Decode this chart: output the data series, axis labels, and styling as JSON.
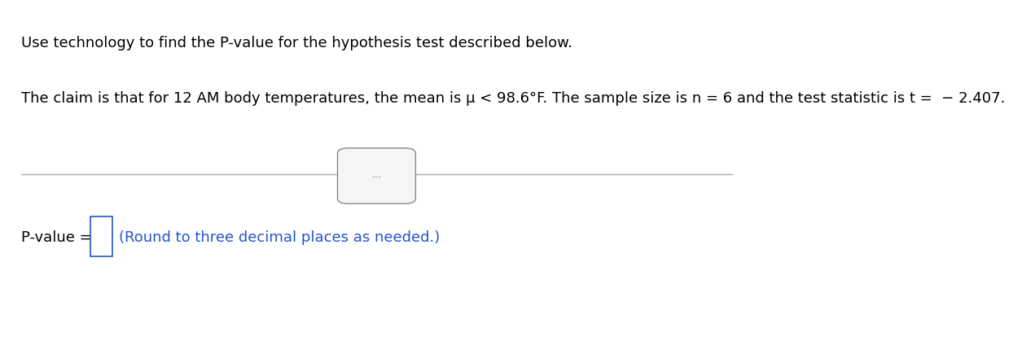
{
  "line1": "Use technology to find the P-value for the hypothesis test described below.",
  "line2": "The claim is that for 12 AM body temperatures, the mean is μ < 98.6°F. The sample size is n = 6 and the test statistic is t =  − 2.407.",
  "separator_dots": "...",
  "pvalue_label": "P-value = ",
  "pvalue_note": "(Round to three decimal places as needed.)",
  "bg_color": "#ffffff",
  "text_color": "#000000",
  "blue_color": "#2255cc",
  "line_color": "#aaaaaa",
  "font_size_line1": 13,
  "font_size_line2": 13,
  "font_size_pvalue": 13
}
